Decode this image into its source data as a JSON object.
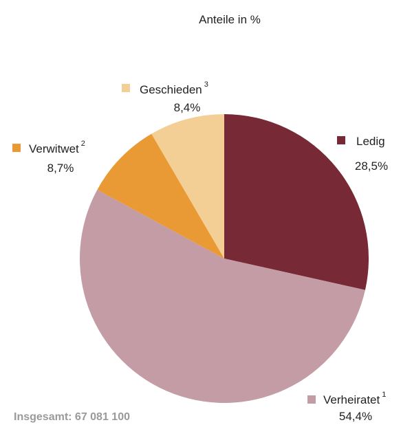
{
  "chart_data": {
    "type": "pie",
    "title": "Anteile in %",
    "categories": [
      "Ledig",
      "Verheiratet",
      "Verwitwet",
      "Geschieden"
    ],
    "footnote_marks": [
      null,
      "1",
      "2",
      "3"
    ],
    "values": [
      28.5,
      54.4,
      8.7,
      8.4
    ],
    "value_labels": [
      "28,5%",
      "54,4%",
      "8,7%",
      "8,4%"
    ],
    "colors": [
      "#772936",
      "#c49ca5",
      "#e99a35",
      "#f3cf96"
    ],
    "note": "Insgesamt: 67 081 100"
  }
}
